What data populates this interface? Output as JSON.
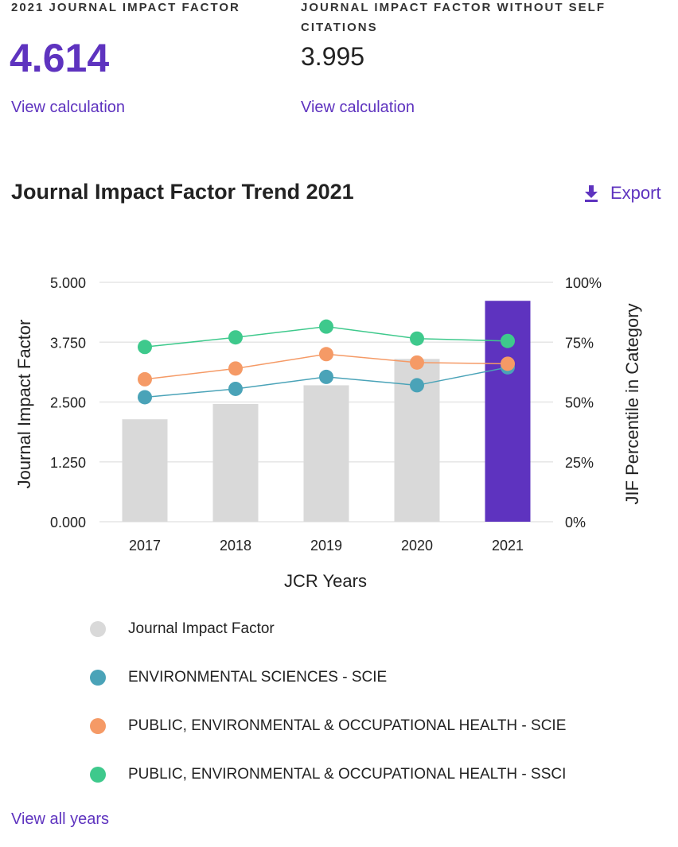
{
  "metrics": {
    "jif": {
      "label": "2021 JOURNAL IMPACT FACTOR",
      "value": "4.614",
      "link": "View calculation"
    },
    "jif_no_self": {
      "label": "JOURNAL IMPACT FACTOR WITHOUT SELF CITATIONS",
      "value": "3.995",
      "link": "View calculation"
    }
  },
  "trend": {
    "title": "Journal Impact Factor Trend 2021",
    "export_label": "Export",
    "export_icon": "download-icon"
  },
  "colors": {
    "accent": "#5e33bf",
    "bar_default": "#d9d9d9",
    "bar_highlight": "#5e33bf",
    "env_sciences_scie": "#4aa3b8",
    "public_env_occ_health_scie": "#f59a66",
    "public_env_occ_health_ssci": "#3ec98c"
  },
  "chart_data": {
    "type": "bar",
    "xlabel": "JCR Years",
    "ylabel": "Journal Impact Factor",
    "y2label": "JIF Percentile in Category",
    "categories": [
      "2017",
      "2018",
      "2019",
      "2020",
      "2021"
    ],
    "ylim": [
      0,
      5
    ],
    "y_ticks": [
      "0.000",
      "1.250",
      "2.500",
      "3.750",
      "5.000"
    ],
    "y2lim": [
      0,
      100
    ],
    "y2_ticks": [
      "0%",
      "25%",
      "50%",
      "75%",
      "100%"
    ],
    "bars": {
      "name": "Journal Impact Factor",
      "values": [
        2.14,
        2.46,
        2.85,
        3.4,
        4.614
      ],
      "highlight_index": 4
    },
    "series": [
      {
        "name": "ENVIRONMENTAL SCIENCES - SCIE",
        "axis": "y2",
        "color": "#4aa3b8",
        "values": [
          52,
          55.5,
          60.5,
          57,
          64.5
        ]
      },
      {
        "name": "PUBLIC, ENVIRONMENTAL & OCCUPATIONAL HEALTH - SCIE",
        "axis": "y2",
        "color": "#f59a66",
        "values": [
          59.5,
          64,
          70,
          66.5,
          66
        ]
      },
      {
        "name": "PUBLIC, ENVIRONMENTAL & OCCUPATIONAL HEALTH - SSCI",
        "axis": "y2",
        "color": "#3ec98c",
        "values": [
          73,
          77,
          81.5,
          76.5,
          75.5
        ]
      }
    ],
    "grid": true,
    "legend_position": "bottom"
  },
  "footer": {
    "view_all": "View all years"
  }
}
